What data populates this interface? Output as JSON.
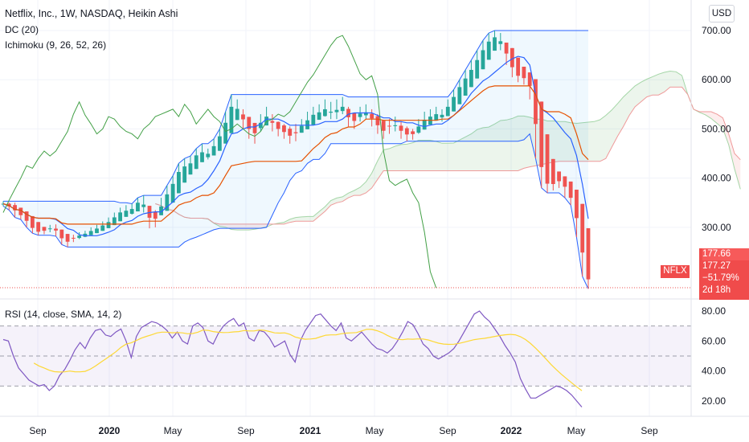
{
  "legend": {
    "title": "Netflix, Inc., 1W, NASDAQ, Heikin Ashi",
    "dc": "DC (20)",
    "ichimoku": "Ichimoku (9, 26, 52, 26)",
    "rsi": "RSI (14, close, SMA, 14, 2)"
  },
  "currency": "USD",
  "last_price_tag": {
    "ticker": "NFLX",
    "price_top": "177.66",
    "price": "177.27",
    "change": "−51.79%",
    "countdown": "2d 18h"
  },
  "colors": {
    "up": "#26a69a",
    "down": "#ef5350",
    "dc_band": "#2962ff",
    "ichimoku_conversion": "#2962ff",
    "ichimoku_base": "#e65100",
    "ichimoku_lagging": "#43a047",
    "rsi": "#7e57c2",
    "rsi_ma": "#fdd835"
  },
  "chart_data": [
    {
      "type": "candlestick",
      "x_ticks": [
        "Sep",
        "2020",
        "May",
        "Sep",
        "2021",
        "May",
        "Sep",
        "2022",
        "May",
        "Sep"
      ],
      "y_ticks": [
        "700.00",
        "600.00",
        "500.00",
        "400.00",
        "300.00"
      ],
      "ylim": [
        170,
        720
      ],
      "start": "2019-07-01",
      "last_price": 177.27,
      "ohlc": [
        [
          351,
          353,
          343,
          345
        ],
        [
          345,
          350,
          335,
          340
        ],
        [
          340,
          350,
          320,
          328
        ],
        [
          328,
          335,
          316,
          320
        ],
        [
          320,
          328,
          300,
          305
        ],
        [
          305,
          310,
          288,
          292
        ],
        [
          292,
          298,
          284,
          290
        ],
        [
          290,
          300,
          286,
          296
        ],
        [
          296,
          305,
          290,
          300
        ],
        [
          300,
          306,
          282,
          286
        ],
        [
          286,
          290,
          265,
          270
        ],
        [
          270,
          278,
          260,
          275
        ],
        [
          275,
          285,
          270,
          282
        ],
        [
          282,
          290,
          276,
          285
        ],
        [
          285,
          293,
          280,
          290
        ],
        [
          290,
          300,
          285,
          295
        ],
        [
          295,
          305,
          290,
          300
        ],
        [
          300,
          312,
          295,
          308
        ],
        [
          308,
          320,
          300,
          315
        ],
        [
          315,
          330,
          310,
          326
        ],
        [
          326,
          340,
          320,
          335
        ],
        [
          335,
          345,
          325,
          330
        ],
        [
          330,
          348,
          326,
          345
        ],
        [
          345,
          360,
          340,
          355
        ],
        [
          355,
          365,
          330,
          335
        ],
        [
          335,
          340,
          298,
          305
        ],
        [
          305,
          335,
          300,
          330
        ],
        [
          330,
          360,
          325,
          355
        ],
        [
          355,
          385,
          350,
          378
        ],
        [
          378,
          405,
          370,
          400
        ],
        [
          400,
          430,
          395,
          425
        ],
        [
          425,
          440,
          410,
          420
        ],
        [
          420,
          445,
          415,
          440
        ],
        [
          440,
          460,
          430,
          455
        ],
        [
          455,
          470,
          440,
          445
        ],
        [
          445,
          460,
          438,
          455
        ],
        [
          455,
          480,
          450,
          475
        ],
        [
          475,
          500,
          470,
          495
        ],
        [
          495,
          535,
          490,
          530
        ],
        [
          530,
          570,
          525,
          555
        ],
        [
          555,
          560,
          520,
          528
        ],
        [
          528,
          540,
          500,
          510
        ],
        [
          510,
          520,
          480,
          490
        ],
        [
          490,
          505,
          470,
          500
        ],
        [
          500,
          530,
          495,
          525
        ],
        [
          525,
          545,
          510,
          520
        ],
        [
          520,
          530,
          495,
          505
        ],
        [
          505,
          515,
          485,
          495
        ],
        [
          495,
          510,
          480,
          490
        ],
        [
          490,
          505,
          470,
          480
        ],
        [
          480,
          510,
          475,
          500
        ],
        [
          500,
          520,
          495,
          510
        ],
        [
          510,
          535,
          500,
          525
        ],
        [
          525,
          545,
          515,
          530
        ],
        [
          530,
          550,
          520,
          535
        ],
        [
          535,
          560,
          525,
          540
        ],
        [
          540,
          555,
          520,
          525
        ],
        [
          525,
          560,
          520,
          550
        ],
        [
          550,
          565,
          530,
          535
        ],
        [
          535,
          545,
          505,
          510
        ],
        [
          510,
          530,
          500,
          525
        ],
        [
          525,
          545,
          515,
          540
        ],
        [
          540,
          550,
          520,
          525
        ],
        [
          525,
          540,
          505,
          515
        ],
        [
          515,
          530,
          490,
          495
        ],
        [
          495,
          510,
          480,
          500
        ],
        [
          500,
          520,
          490,
          510
        ],
        [
          510,
          525,
          495,
          500
        ],
        [
          500,
          515,
          480,
          490
        ],
        [
          490,
          505,
          475,
          485
        ],
        [
          485,
          500,
          478,
          495
        ],
        [
          495,
          520,
          490,
          515
        ],
        [
          515,
          535,
          505,
          520
        ],
        [
          520,
          540,
          510,
          530
        ],
        [
          530,
          545,
          520,
          525
        ],
        [
          525,
          540,
          515,
          535
        ],
        [
          535,
          560,
          530,
          555
        ],
        [
          555,
          580,
          550,
          575
        ],
        [
          575,
          600,
          570,
          595
        ],
        [
          595,
          620,
          585,
          610
        ],
        [
          610,
          640,
          600,
          630
        ],
        [
          630,
          660,
          620,
          650
        ],
        [
          650,
          680,
          640,
          670
        ],
        [
          670,
          695,
          660,
          685
        ],
        [
          685,
          700,
          670,
          690
        ],
        [
          690,
          695,
          660,
          668
        ],
        [
          668,
          675,
          630,
          640
        ],
        [
          640,
          645,
          605,
          612
        ],
        [
          612,
          625,
          595,
          600
        ],
        [
          600,
          615,
          590,
          608
        ],
        [
          608,
          612,
          560,
          570
        ],
        [
          570,
          575,
          440,
          455
        ],
        [
          455,
          460,
          380,
          395
        ],
        [
          395,
          405,
          370,
          385
        ],
        [
          385,
          400,
          375,
          392
        ],
        [
          392,
          405,
          380,
          398
        ],
        [
          398,
          402,
          360,
          370
        ],
        [
          370,
          375,
          345,
          350
        ],
        [
          350,
          355,
          280,
          290
        ],
        [
          290,
          295,
          200,
          210
        ],
        [
          210,
          215,
          175,
          177
        ]
      ]
    },
    {
      "type": "line",
      "title": "RSI",
      "y_ticks": [
        "80.00",
        "60.00",
        "40.00",
        "20.00"
      ],
      "ylim": [
        10,
        90
      ],
      "upper_band": 70,
      "middle_band": 50,
      "lower_band": 30,
      "rsi": [
        61,
        60,
        50,
        42,
        38,
        34,
        32,
        30,
        31,
        27,
        30,
        37,
        41,
        47,
        54,
        59,
        55,
        62,
        67,
        68,
        64,
        63,
        66,
        68,
        60,
        49,
        63,
        69,
        71,
        73,
        72,
        70,
        67,
        62,
        66,
        60,
        58,
        70,
        72,
        69,
        60,
        58,
        65,
        70,
        73,
        75,
        70,
        72,
        62,
        60,
        67,
        66,
        62,
        56,
        58,
        60,
        51,
        46,
        60,
        67,
        72,
        77,
        78,
        74,
        70,
        67,
        72,
        62,
        60,
        63,
        66,
        62,
        58,
        55,
        54,
        52,
        55,
        60,
        66,
        73,
        71,
        65,
        58,
        55,
        50,
        48,
        50,
        52,
        55,
        60,
        66,
        72,
        78,
        80,
        76,
        73,
        68,
        63,
        57,
        52,
        46,
        35,
        28,
        22,
        22,
        24,
        26,
        28,
        30,
        29,
        27,
        24,
        20,
        16
      ]
    }
  ]
}
